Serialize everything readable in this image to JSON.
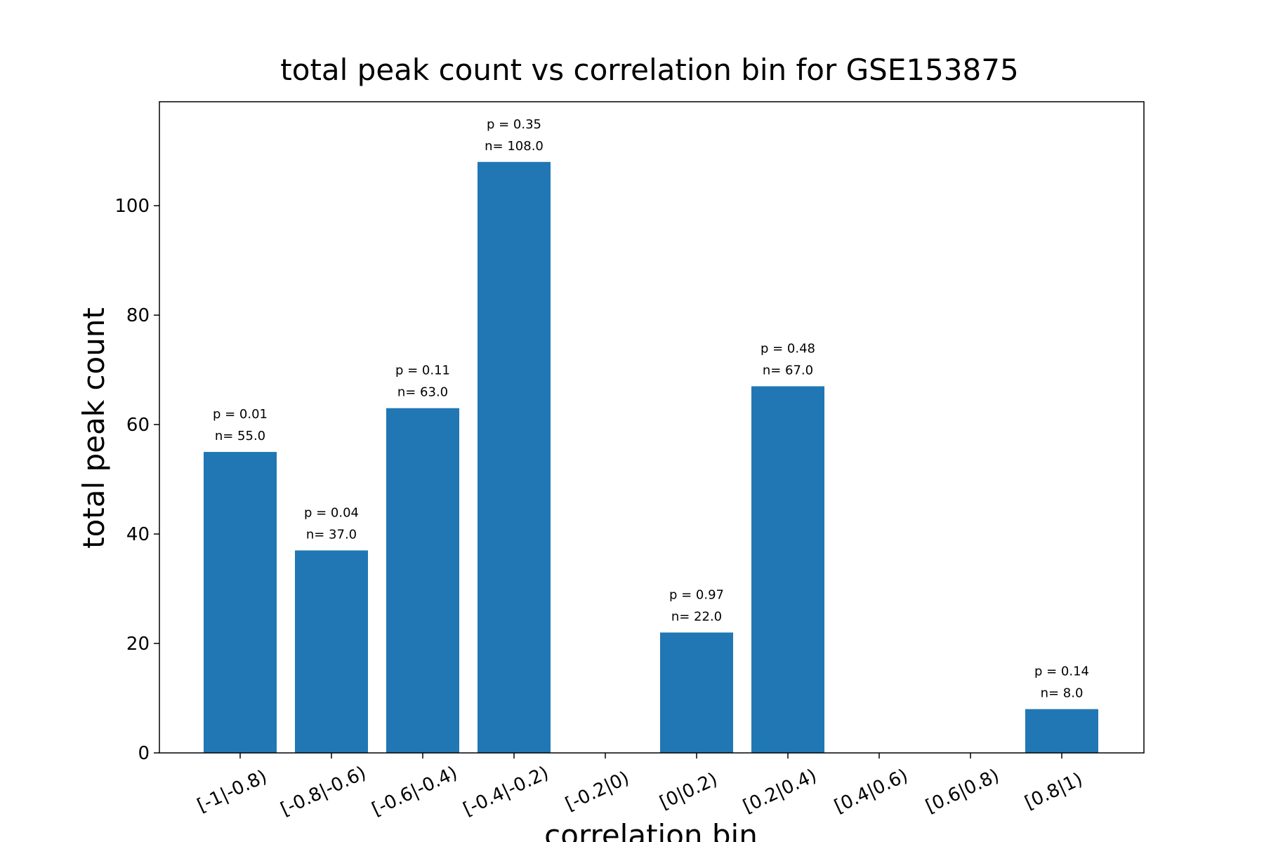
{
  "chart_data": {
    "type": "bar",
    "title": "total peak count vs correlation bin for GSE153875",
    "xlabel": "correlation bin",
    "ylabel": "total peak count",
    "categories": [
      "[-1|-0.8)",
      "[-0.8|-0.6)",
      "[-0.6|-0.4)",
      "[-0.4|-0.2)",
      "[-0.2|0)",
      "[0|0.2)",
      "[0.2|0.4)",
      "[0.4|0.6)",
      "[0.6|0.8)",
      "[0.8|1)"
    ],
    "values": [
      55,
      37,
      63,
      108,
      0,
      22,
      67,
      0,
      0,
      8
    ],
    "annotations": [
      {
        "p": "p = 0.01",
        "n": "n= 55.0"
      },
      {
        "p": "p = 0.04",
        "n": "n= 37.0"
      },
      {
        "p": "p = 0.11",
        "n": "n= 63.0"
      },
      {
        "p": "p = 0.35",
        "n": "n= 108.0"
      },
      null,
      {
        "p": "p = 0.97",
        "n": "n= 22.0"
      },
      {
        "p": "p = 0.48",
        "n": "n= 67.0"
      },
      null,
      null,
      {
        "p": "p = 0.14",
        "n": "n= 8.0"
      }
    ],
    "ylim": [
      0,
      119
    ],
    "yticks": [
      0,
      20,
      40,
      60,
      80,
      100
    ],
    "grid": false,
    "bar_color": "#2077b4"
  }
}
